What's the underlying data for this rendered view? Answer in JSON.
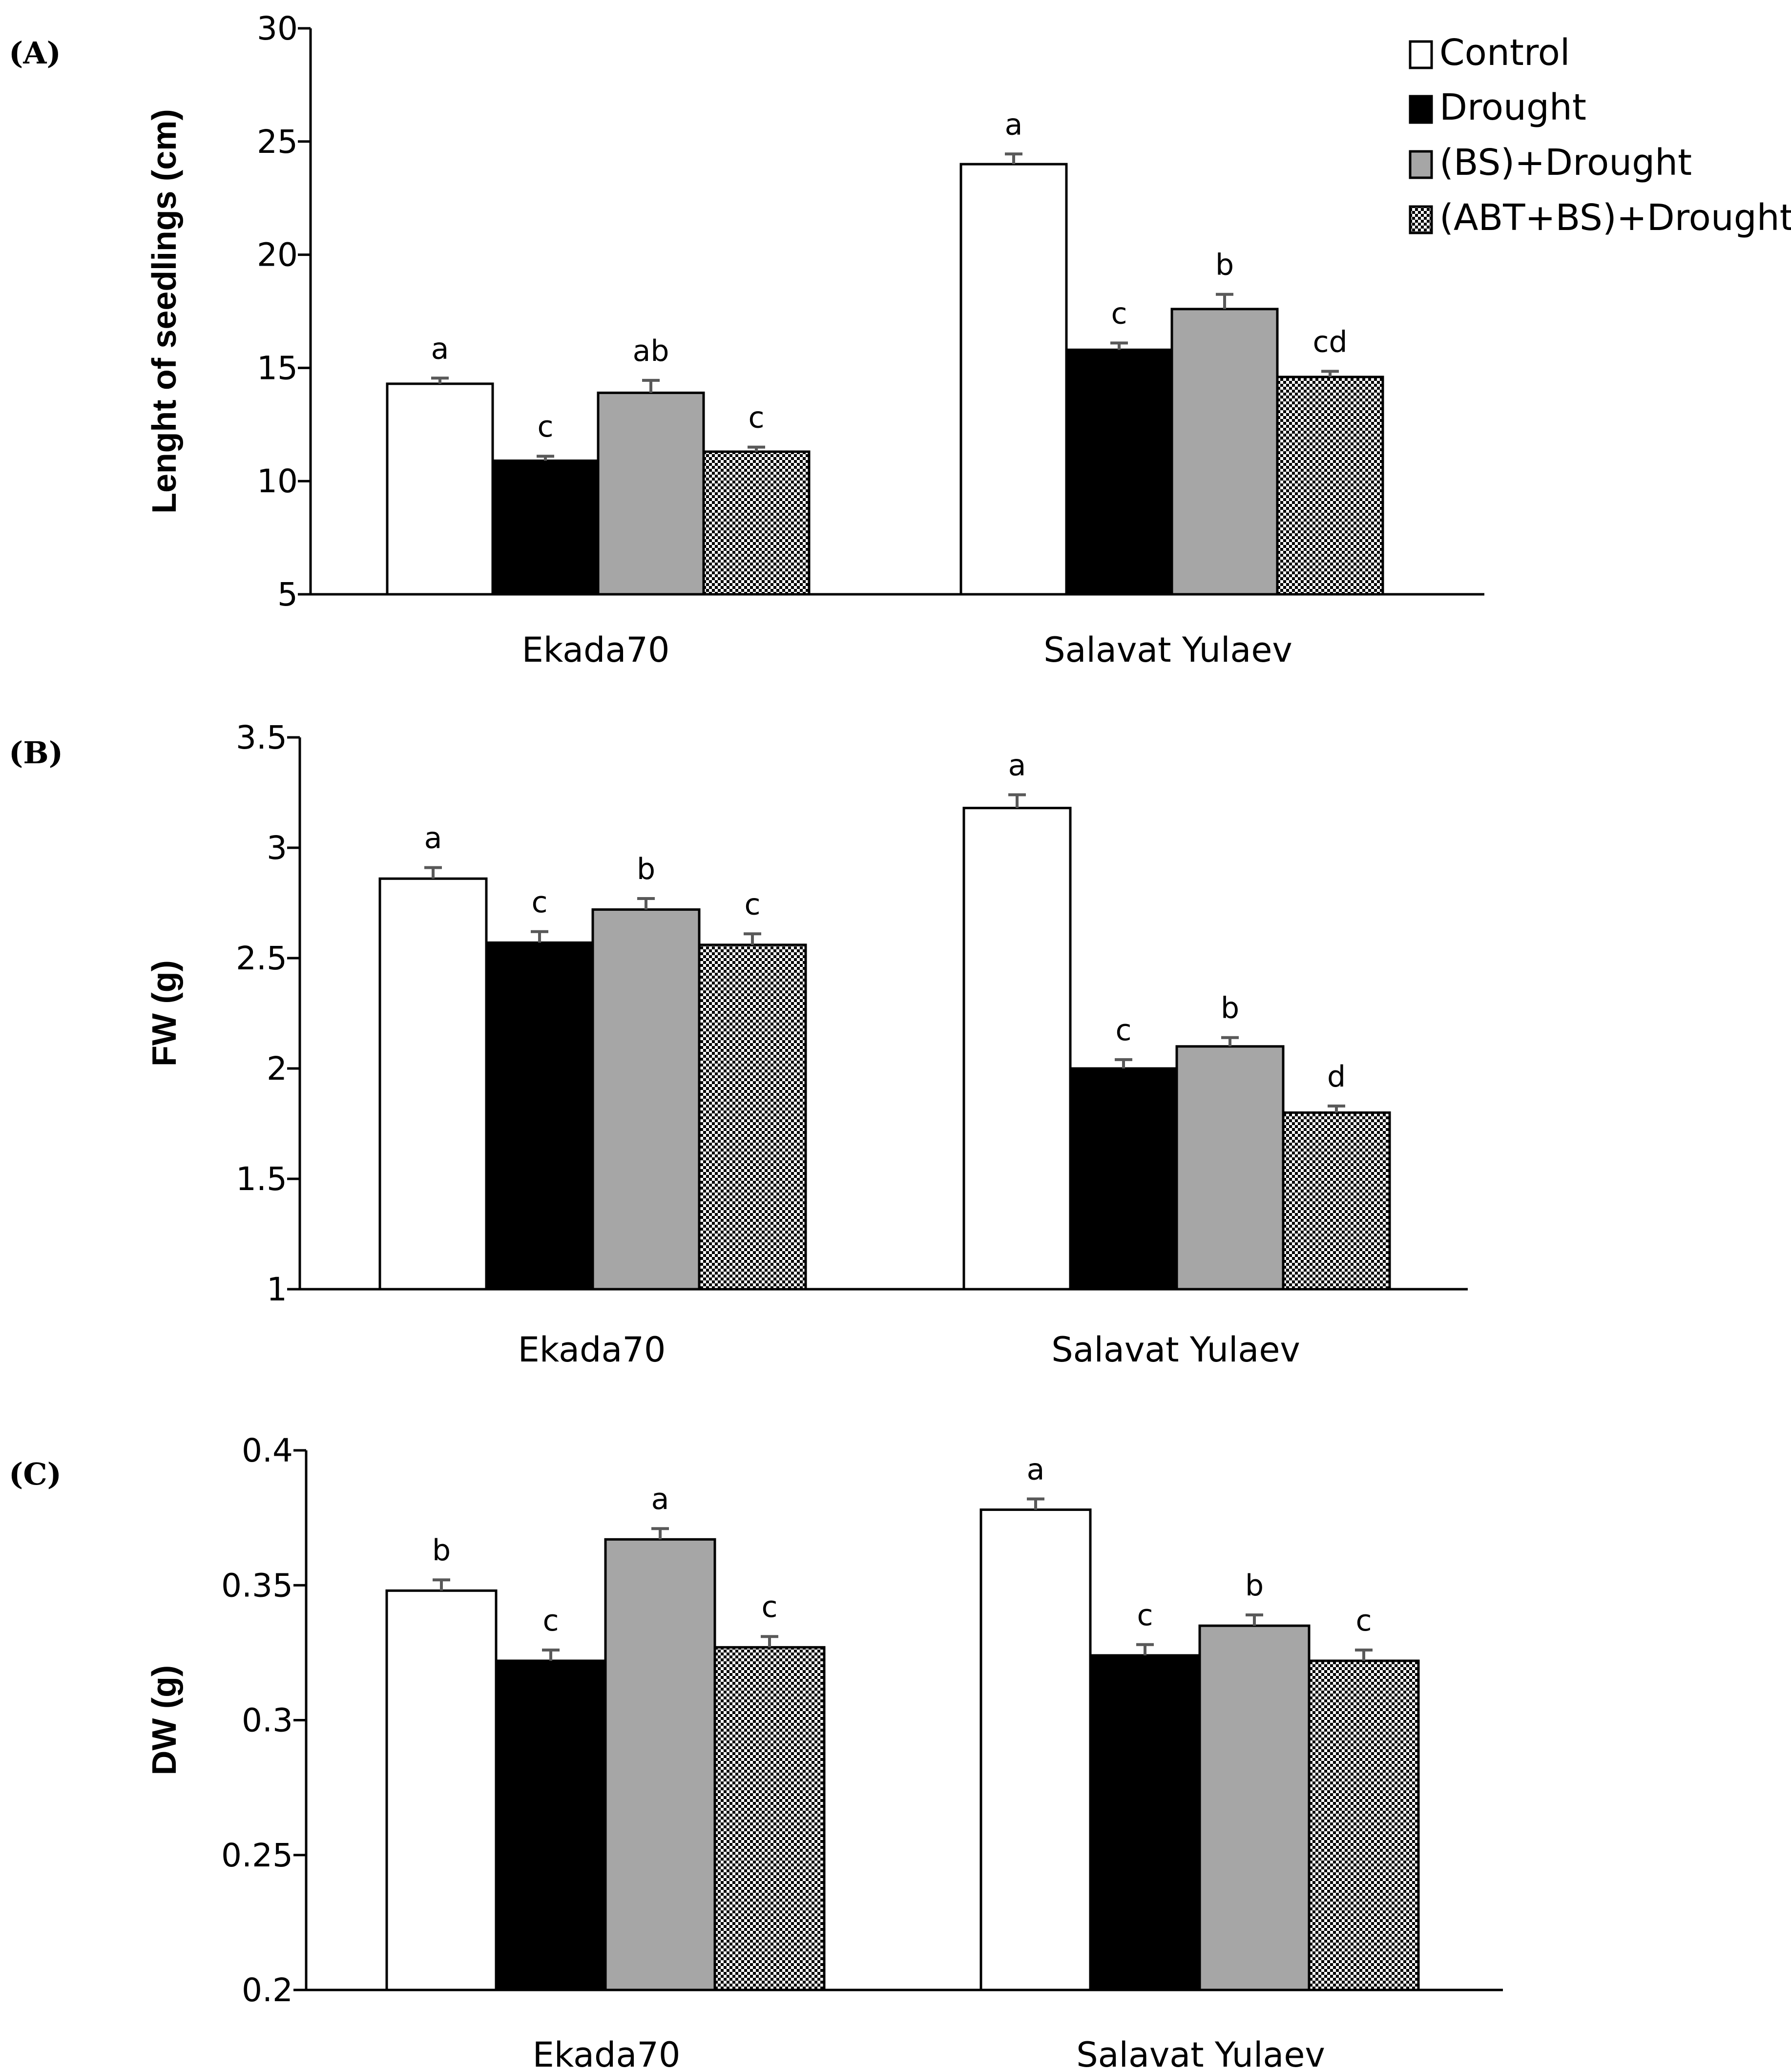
{
  "figure": {
    "legend": [
      "Control",
      "Drought",
      "(BS)+Drought",
      "(ABT+BS)+Drought"
    ]
  },
  "colors": {
    "control": "#ffffff",
    "drought": "#000000",
    "bs_drought": "#a6a6a6",
    "abt_bs_drought": "checker-pattern",
    "error_bar": "#595959",
    "axis": "#000000"
  },
  "chart_data": [
    {
      "type": "bar",
      "panel": "(A)",
      "ylabel": "Lenght of seedlings (cm)",
      "ylim": [
        5,
        30
      ],
      "yticks": [
        5,
        10,
        15,
        20,
        25,
        30
      ],
      "categories": [
        "Ekada70",
        "Salavat Yulaev"
      ],
      "series": [
        {
          "name": "Control",
          "values": [
            14.3,
            24.0
          ],
          "errors": [
            0.25,
            0.45
          ],
          "letters": [
            "a",
            "a"
          ]
        },
        {
          "name": "Drought",
          "values": [
            10.9,
            15.8
          ],
          "errors": [
            0.2,
            0.3
          ],
          "letters": [
            "c",
            "c"
          ]
        },
        {
          "name": "(BS)+Drought",
          "values": [
            13.9,
            17.6
          ],
          "errors": [
            0.55,
            0.65
          ],
          "letters": [
            "ab",
            "b"
          ]
        },
        {
          "name": "(ABT+BS)+Drought",
          "values": [
            11.3,
            14.6
          ],
          "errors": [
            0.2,
            0.25
          ],
          "letters": [
            "c",
            "cd"
          ]
        }
      ]
    },
    {
      "type": "bar",
      "panel": "(B)",
      "ylabel": "FW (g)",
      "ylim": [
        1,
        3.5
      ],
      "yticks": [
        "1",
        "1.5",
        "2",
        "2.5",
        "3",
        "3.5"
      ],
      "categories": [
        "Ekada70",
        "Salavat Yulaev"
      ],
      "series": [
        {
          "name": "Control",
          "values": [
            2.86,
            3.18
          ],
          "errors": [
            0.05,
            0.06
          ],
          "letters": [
            "a",
            "a"
          ]
        },
        {
          "name": "Drought",
          "values": [
            2.57,
            2.0
          ],
          "errors": [
            0.05,
            0.04
          ],
          "letters": [
            "c",
            "c"
          ]
        },
        {
          "name": "(BS)+Drought",
          "values": [
            2.72,
            2.1
          ],
          "errors": [
            0.05,
            0.04
          ],
          "letters": [
            "b",
            "b"
          ]
        },
        {
          "name": "(ABT+BS)+Drought",
          "values": [
            2.56,
            1.8
          ],
          "errors": [
            0.05,
            0.03
          ],
          "letters": [
            "c",
            "d"
          ]
        }
      ]
    },
    {
      "type": "bar",
      "panel": "(C)",
      "ylabel": "DW (g)",
      "ylim": [
        0.2,
        0.4
      ],
      "yticks": [
        "0.2",
        "0.25",
        "0.3",
        "0.35",
        "0.4"
      ],
      "categories": [
        "Ekada70",
        "Salavat Yulaev"
      ],
      "series": [
        {
          "name": "Control",
          "values": [
            0.348,
            0.378
          ],
          "errors": [
            0.004,
            0.004
          ],
          "letters": [
            "b",
            "a"
          ]
        },
        {
          "name": "Drought",
          "values": [
            0.322,
            0.324
          ],
          "errors": [
            0.004,
            0.004
          ],
          "letters": [
            "c",
            "c"
          ]
        },
        {
          "name": "(BS)+Drought",
          "values": [
            0.367,
            0.335
          ],
          "errors": [
            0.004,
            0.004
          ],
          "letters": [
            "a",
            "b"
          ]
        },
        {
          "name": "(ABT+BS)+Drought",
          "values": [
            0.327,
            0.322
          ],
          "errors": [
            0.004,
            0.004
          ],
          "letters": [
            "c",
            "c"
          ]
        }
      ]
    }
  ]
}
